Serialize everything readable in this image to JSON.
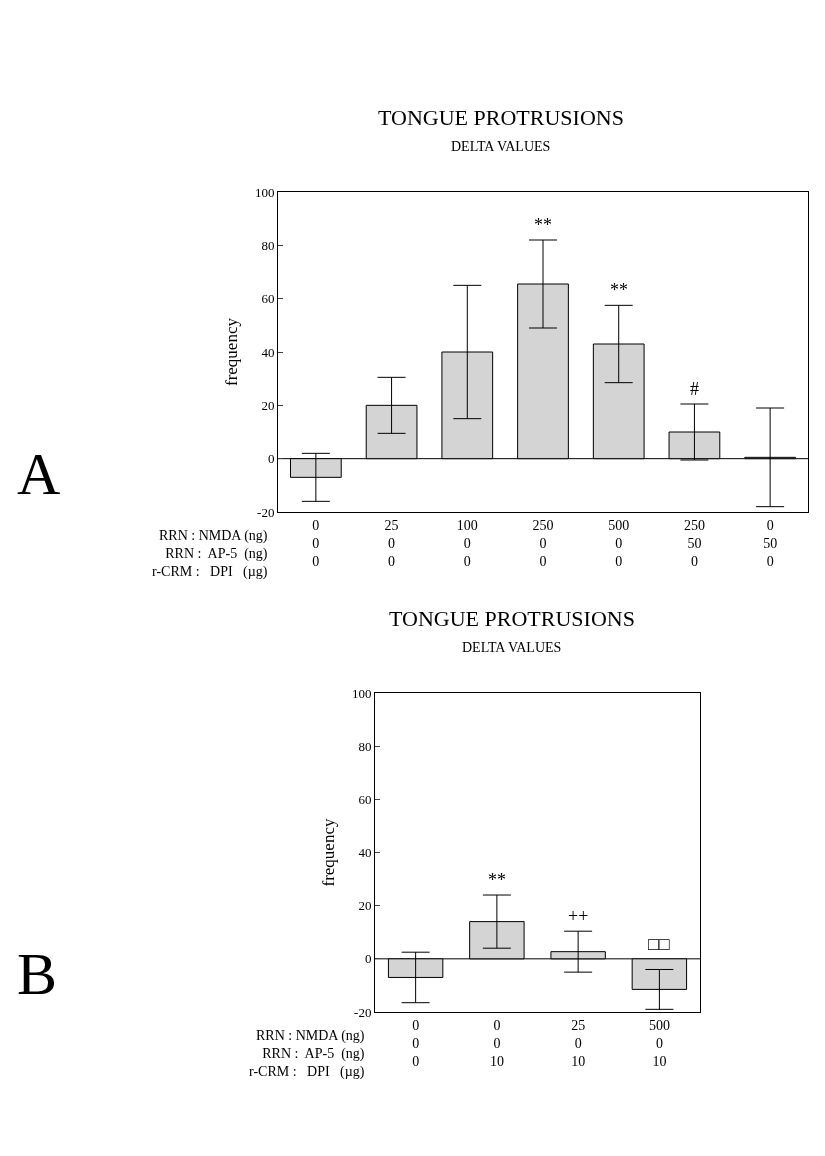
{
  "chart_data": [
    {
      "type": "bar",
      "title": "TONGUE PROTRUSIONS",
      "subtitle": "DELTA VALUES",
      "ylabel": "frequency",
      "xlabel": "RRN : NMDA (ng)\nRRN :  AP-5  (ng)\nr-CRM :   DPI   (µg)",
      "categories": [
        "0\n0\n0",
        "25\n0\n0",
        "100\n0\n0",
        "250\n0\n0",
        "500\n0\n0",
        "250\n50\n0",
        "0\n50\n0"
      ],
      "values": [
        -7,
        20,
        40,
        65.5,
        43,
        10,
        0.5
      ],
      "errors": [
        9,
        10.5,
        25,
        16.5,
        14.5,
        10.5,
        18.5
      ],
      "value_labels": [
        null,
        null,
        null,
        "**",
        "**",
        "#",
        null
      ],
      "color": "#d4d4d4",
      "ylim": [
        -20,
        100
      ],
      "yticks": [
        -20,
        0,
        20,
        40,
        60,
        80,
        100
      ],
      "ref_lines": [
        {
          "axis": "y",
          "value": 0,
          "color": "#000000"
        }
      ],
      "annotations": [
        "A"
      ]
    },
    {
      "type": "bar",
      "title": "TONGUE PROTRUSIONS",
      "subtitle": "DELTA VALUES",
      "ylabel": "frequency",
      "xlabel": "RRN : NMDA (ng)\nRRN :  AP-5  (ng)\nr-CRM :   DPI   (µg)",
      "categories": [
        "0\n0\n0",
        "0\n0\n10",
        "25\n0\n10",
        "500\n0\n10"
      ],
      "values": [
        -7,
        14,
        2.7,
        -11.5
      ],
      "errors": [
        9.5,
        10,
        7.7,
        7.5
      ],
      "value_labels": [
        null,
        "**",
        "++",
        "□□"
      ],
      "color": "#d4d4d4",
      "ylim": [
        -20,
        100
      ],
      "yticks": [
        -20,
        0,
        20,
        40,
        60,
        80,
        100
      ],
      "ref_lines": [
        {
          "axis": "y",
          "value": 0,
          "color": "#000000"
        }
      ],
      "annotations": [
        "B"
      ]
    }
  ]
}
